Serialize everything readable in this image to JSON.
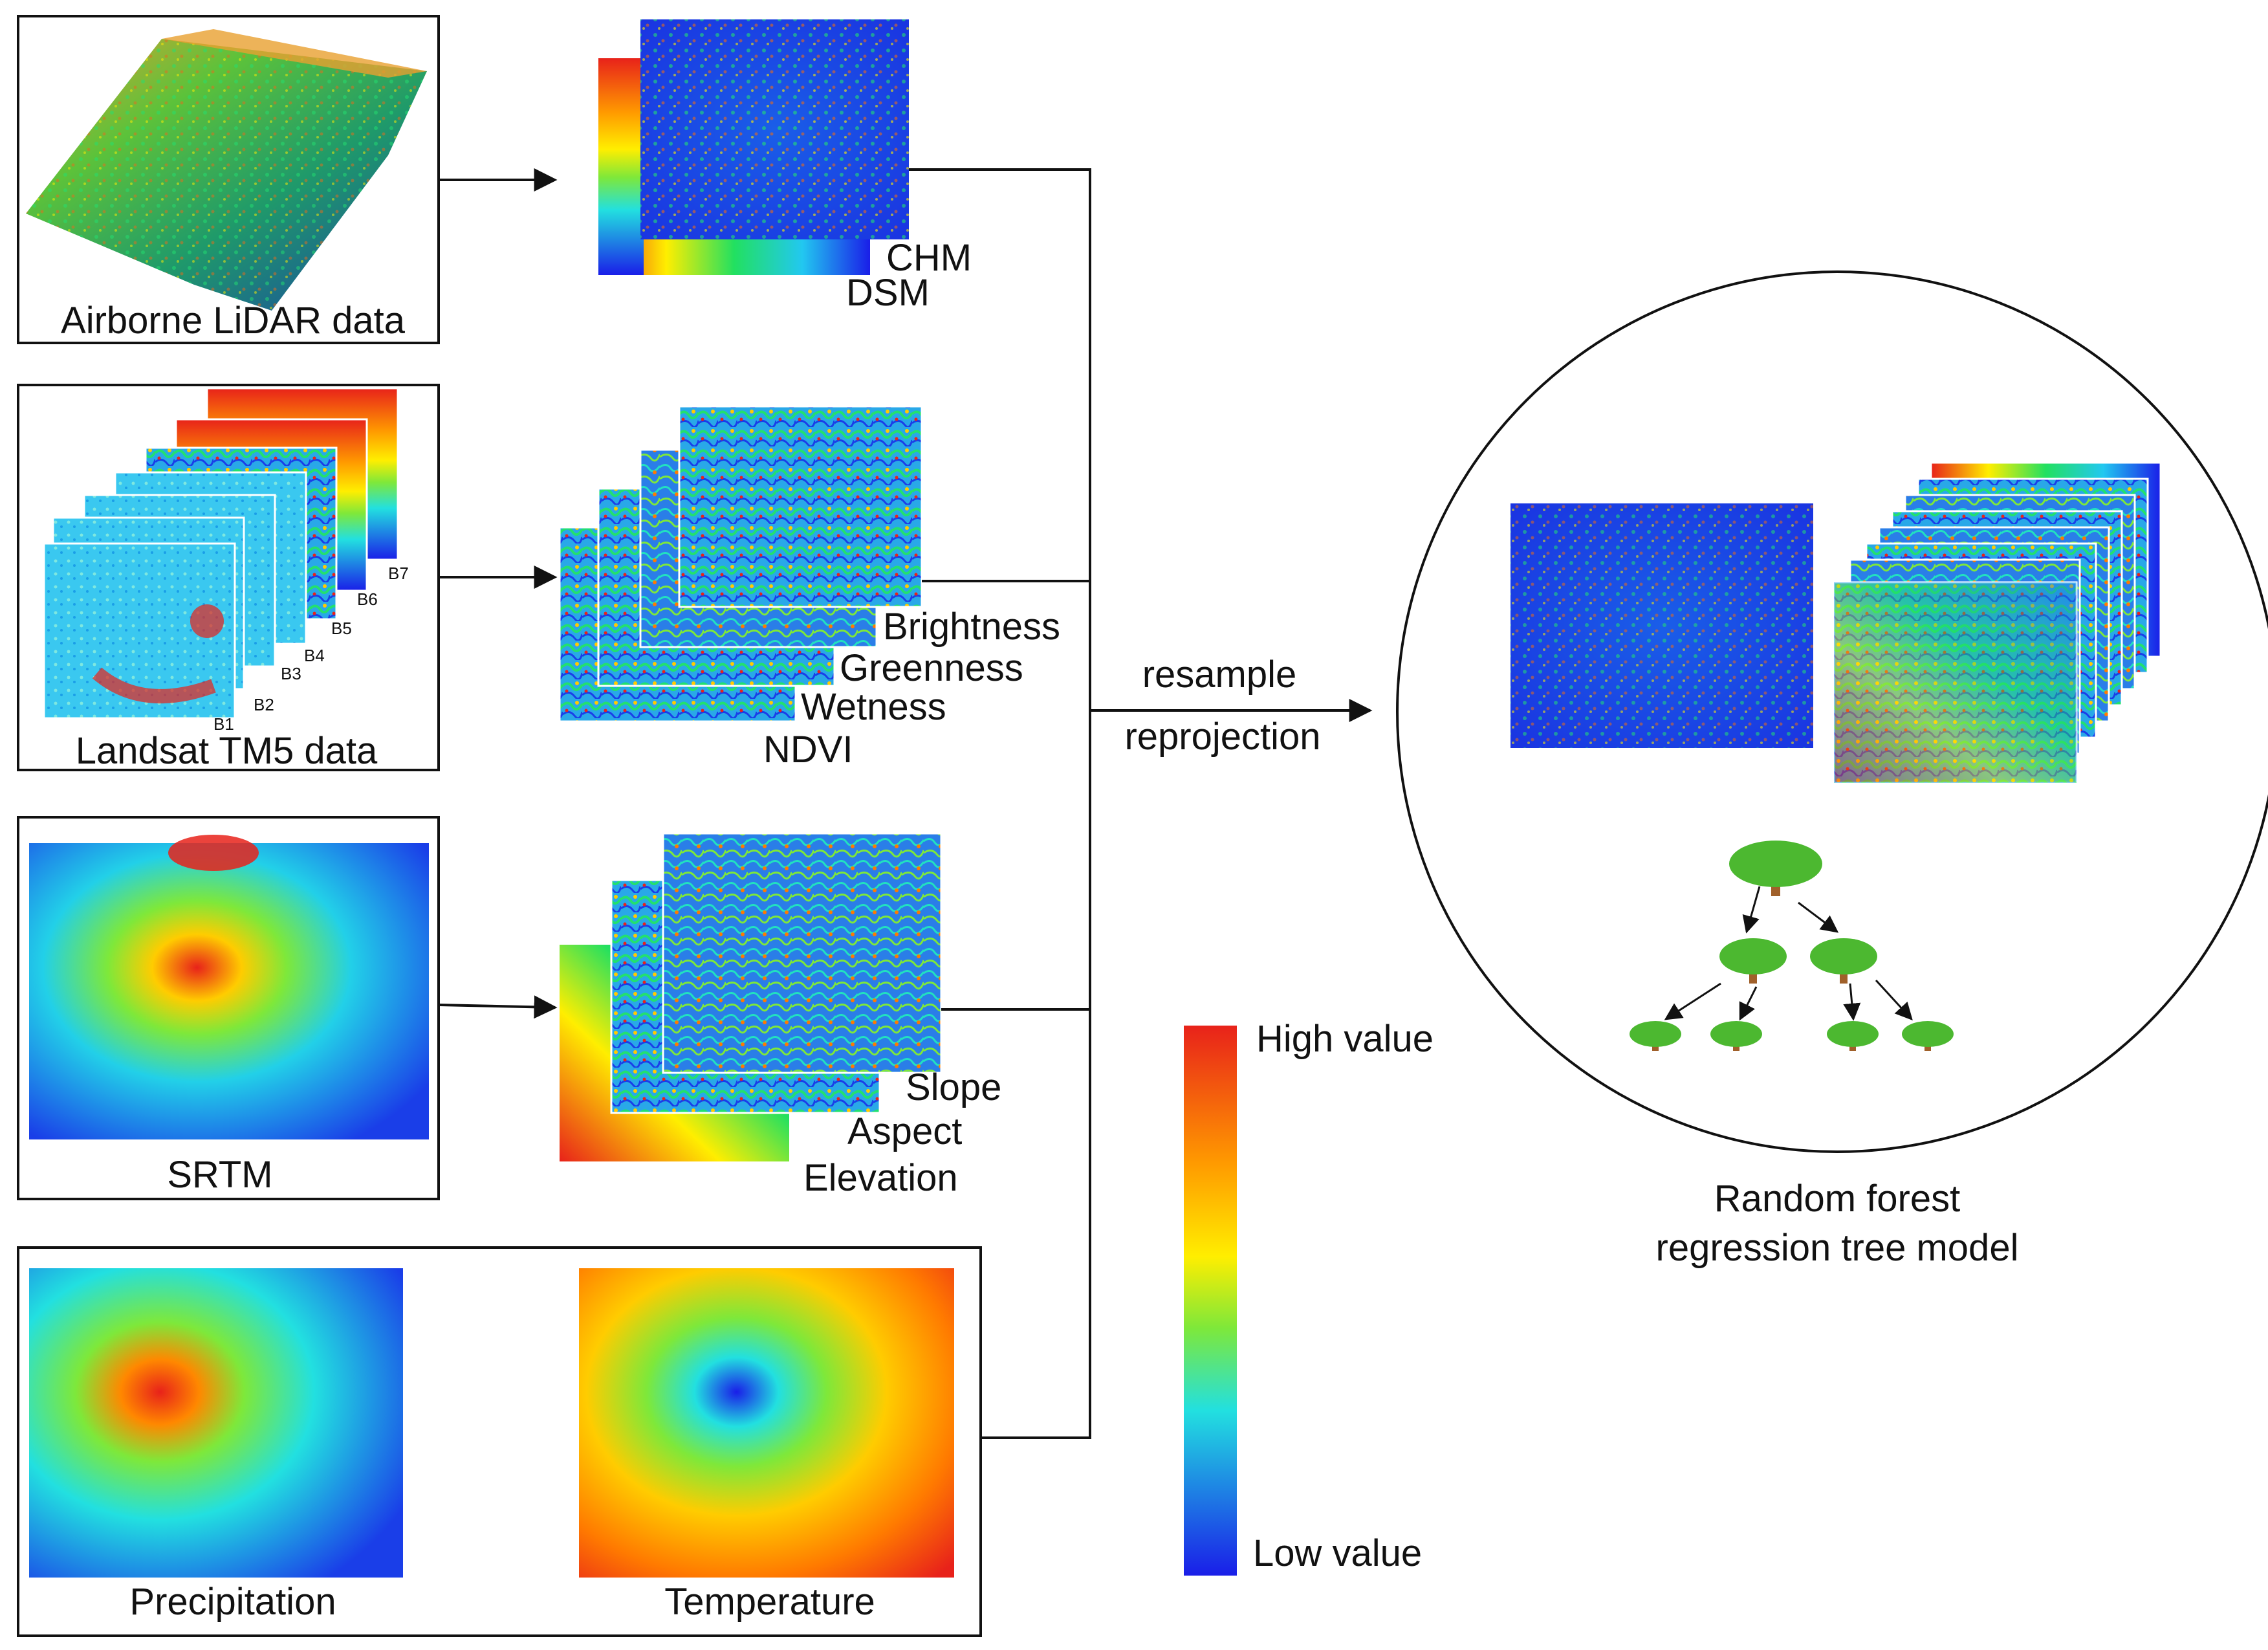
{
  "sources": {
    "lidar": "Airborne LiDAR data",
    "landsat": "Landsat TM5 data",
    "srtm": "SRTM",
    "precipitation": "Precipitation",
    "temperature": "Temperature"
  },
  "bands": [
    "B1",
    "B2",
    "B3",
    "B4",
    "B5",
    "B6",
    "B7"
  ],
  "derived": {
    "lidar": [
      "CHM",
      "DSM"
    ],
    "landsat": [
      "Brightness",
      "Greenness",
      "Wetness",
      "NDVI"
    ],
    "srtm": [
      "Slope",
      "Aspect",
      "Elevation"
    ]
  },
  "process": {
    "resample": "resample",
    "reprojection": "reprojection"
  },
  "model": {
    "line1": "Random forest",
    "line2": "regression tree model"
  },
  "legend": {
    "high": "High value",
    "low": "Low value"
  },
  "colors": {
    "high": "#e8221a",
    "mid": "#ffee00",
    "low_mid": "#22e0e0",
    "low": "#1a1ee8",
    "frame": "#111111"
  }
}
